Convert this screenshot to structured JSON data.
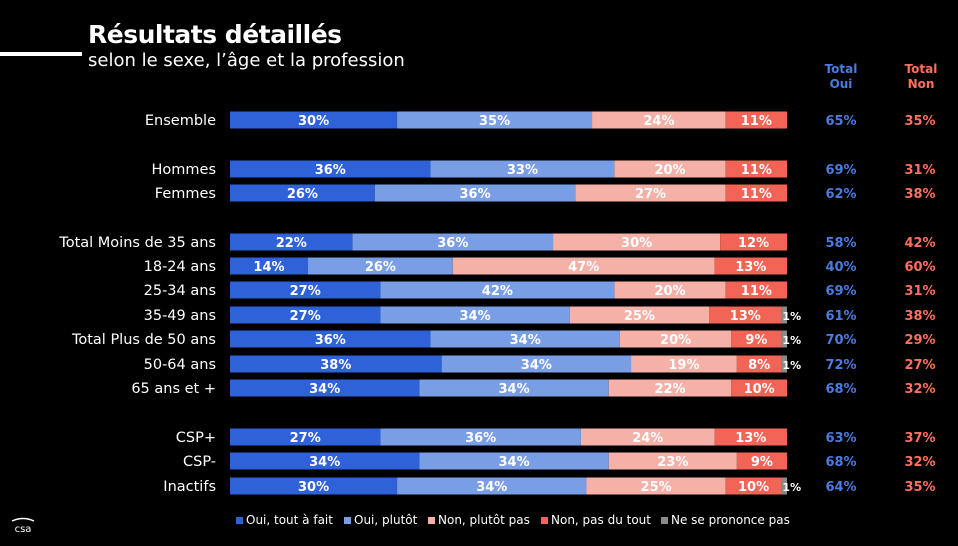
{
  "header": {
    "title": "Résultats détaillés",
    "subtitle": "selon le sexe, l’âge et la profession",
    "total_oui": "Total\nOui",
    "total_non": "Total\nNon"
  },
  "logo": "csa",
  "colors": {
    "oui_tout_a_fait": "#2f62d8",
    "oui_plutot": "#7a9ee6",
    "non_plutot_pas": "#f5b0a8",
    "non_pas_du_tout": "#f26456",
    "ne_se_prononce_pas": "#8a8a8a",
    "total_oui": "#4a7be0",
    "total_non": "#ff6f5e"
  },
  "chart_data": {
    "type": "bar",
    "orientation": "horizontal-stacked",
    "categories": [
      "Ensemble",
      "Hommes",
      "Femmes",
      "Total Moins de 35 ans",
      "18-24 ans",
      "25-34 ans",
      "35-49 ans",
      "Total Plus de 50 ans",
      "50-64 ans",
      "65 ans et +",
      "CSP+",
      "CSP-",
      "Inactifs"
    ],
    "series": [
      {
        "name": "Oui, tout à fait",
        "values": [
          30,
          36,
          26,
          22,
          14,
          27,
          27,
          36,
          38,
          34,
          27,
          34,
          30
        ]
      },
      {
        "name": "Oui, plutôt",
        "values": [
          35,
          33,
          36,
          36,
          26,
          42,
          34,
          34,
          34,
          34,
          36,
          34,
          34
        ]
      },
      {
        "name": "Non, plutôt pas",
        "values": [
          24,
          20,
          27,
          30,
          47,
          20,
          25,
          20,
          19,
          22,
          24,
          23,
          25
        ]
      },
      {
        "name": "Non, pas du tout",
        "values": [
          11,
          11,
          11,
          12,
          13,
          11,
          13,
          9,
          8,
          10,
          13,
          9,
          10
        ]
      },
      {
        "name": "Ne se prononce pas",
        "values": [
          0,
          0,
          0,
          0,
          0,
          0,
          1,
          1,
          1,
          0,
          0,
          0,
          1
        ]
      }
    ],
    "totals": {
      "oui": [
        "65%",
        "69%",
        "62%",
        "58%",
        "40%",
        "69%",
        "61%",
        "70%",
        "72%",
        "68%",
        "63%",
        "68%",
        "64%"
      ],
      "non": [
        "35%",
        "31%",
        "38%",
        "42%",
        "60%",
        "31%",
        "38%",
        "29%",
        "27%",
        "32%",
        "37%",
        "32%",
        "35%"
      ]
    },
    "legend_position": "bottom"
  }
}
